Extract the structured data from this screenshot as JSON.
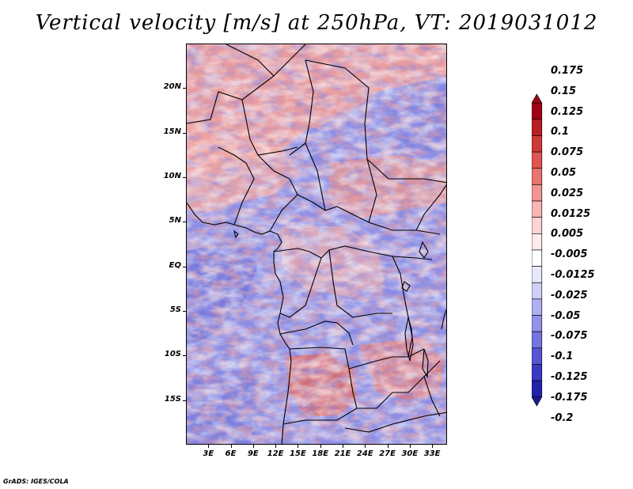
{
  "title": "Vertical velocity [m/s] at 250hPa, VT: 2019031012",
  "credit": "GrADS: IGES/COLA",
  "map": {
    "lon_range": [
      0,
      35
    ],
    "lat_range": [
      -20,
      25
    ],
    "y_ticks": [
      {
        "label": "20N",
        "lat": 20
      },
      {
        "label": "15N",
        "lat": 15
      },
      {
        "label": "10N",
        "lat": 10
      },
      {
        "label": "5N",
        "lat": 5
      },
      {
        "label": "EQ",
        "lat": 0
      },
      {
        "label": "5S",
        "lat": -5
      },
      {
        "label": "10S",
        "lat": -10
      },
      {
        "label": "15S",
        "lat": -15
      }
    ],
    "x_ticks": [
      {
        "label": "3E",
        "lon": 3
      },
      {
        "label": "6E",
        "lon": 6
      },
      {
        "label": "9E",
        "lon": 9
      },
      {
        "label": "12E",
        "lon": 12
      },
      {
        "label": "15E",
        "lon": 15
      },
      {
        "label": "18E",
        "lon": 18
      },
      {
        "label": "21E",
        "lon": 21
      },
      {
        "label": "24E",
        "lon": 24
      },
      {
        "label": "27E",
        "lon": 27
      },
      {
        "label": "30E",
        "lon": 30
      },
      {
        "label": "33E",
        "lon": 33
      }
    ]
  },
  "colorbar": {
    "levels": [
      {
        "label": "0.175",
        "color": "#a00018"
      },
      {
        "label": "0.15",
        "color": "#b81e24"
      },
      {
        "label": "0.125",
        "color": "#cf3a38"
      },
      {
        "label": "0.1",
        "color": "#e05550"
      },
      {
        "label": "0.075",
        "color": "#ea7470"
      },
      {
        "label": "0.05",
        "color": "#f29592"
      },
      {
        "label": "0.025",
        "color": "#f8b6b4"
      },
      {
        "label": "0.0125",
        "color": "#fcd4d2"
      },
      {
        "label": "0.005",
        "color": "#feecec"
      },
      {
        "label": "-0.005",
        "color": "#ffffff"
      },
      {
        "label": "-0.0125",
        "color": "#e8e8fb"
      },
      {
        "label": "-0.025",
        "color": "#cfcff6"
      },
      {
        "label": "-0.05",
        "color": "#b0b0f0"
      },
      {
        "label": "-0.075",
        "color": "#9292ea"
      },
      {
        "label": "-0.1",
        "color": "#7474e0"
      },
      {
        "label": "-0.125",
        "color": "#5656d4"
      },
      {
        "label": "-0.175",
        "color": "#3a3ac4"
      },
      {
        "label": "-0.2",
        "color": "#2222aa"
      }
    ],
    "top_arrow_color": "#a00018",
    "bottom_color": "#1a1a90"
  }
}
